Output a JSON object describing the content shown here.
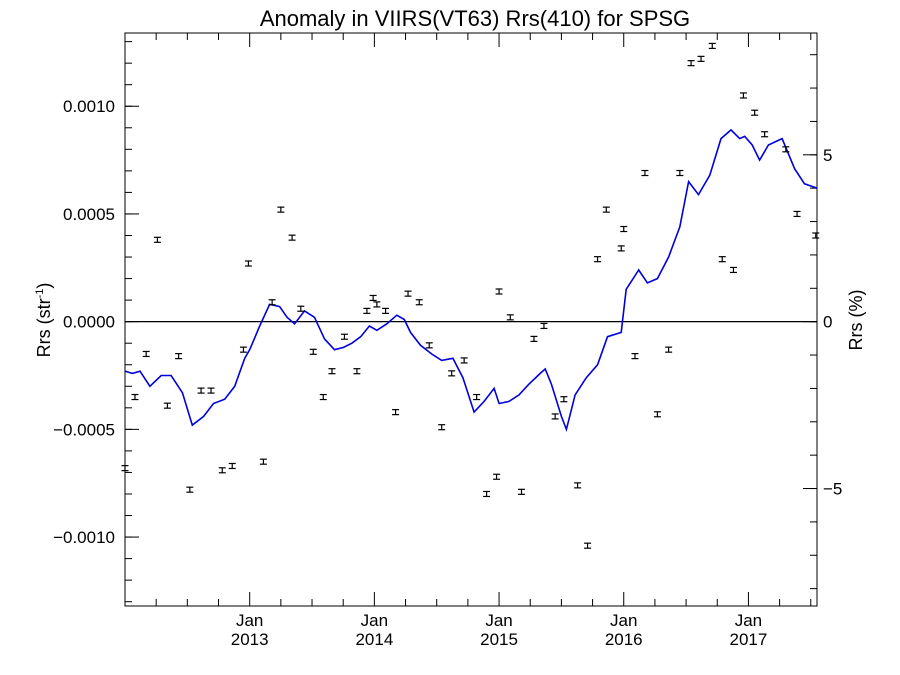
{
  "chart_data": {
    "type": "scatter",
    "title": "Anomaly in VIIRS(VT63) Rrs(410) for SPSG",
    "ylabel_left_main": "Rrs (str",
    "ylabel_left_sup": "-1",
    "ylabel_left_close": ")",
    "ylabel_right": "Rrs (%)",
    "xlim": [
      2012.0,
      2017.55
    ],
    "ylim_left": [
      -0.00132,
      0.00134
    ],
    "ylim_right": [
      -8.52,
      8.65
    ],
    "grid": false,
    "xticks": [
      {
        "x": 2013.0,
        "month": "Jan",
        "year": "2013"
      },
      {
        "x": 2014.0,
        "month": "Jan",
        "year": "2014"
      },
      {
        "x": 2015.0,
        "month": "Jan",
        "year": "2015"
      },
      {
        "x": 2016.0,
        "month": "Jan",
        "year": "2016"
      },
      {
        "x": 2017.0,
        "month": "Jan",
        "year": "2017"
      }
    ],
    "yticks_left": [
      {
        "v": 0.001,
        "label": "0.0010"
      },
      {
        "v": 0.0005,
        "label": "0.0005"
      },
      {
        "v": 0.0,
        "label": "0.0000"
      },
      {
        "v": -0.0005,
        "label": "−0.0005"
      },
      {
        "v": -0.001,
        "label": "−0.0010"
      }
    ],
    "yticks_right": [
      {
        "v": 5,
        "label": "5"
      },
      {
        "v": 0,
        "label": "0"
      },
      {
        "v": -5,
        "label": "−5"
      }
    ],
    "colors": {
      "line": "#0000dd",
      "points": "#000000",
      "axes": "#000000"
    },
    "series": [
      {
        "style": "line",
        "x": [
          2012.0,
          2012.06,
          2012.12,
          2012.2,
          2012.29,
          2012.37,
          2012.46,
          2012.54,
          2012.63,
          2012.71,
          2012.8,
          2012.88,
          2012.96,
          2013.0,
          2013.08,
          2013.16,
          2013.24,
          2013.3,
          2013.36,
          2013.44,
          2013.52,
          2013.6,
          2013.68,
          2013.75,
          2013.82,
          2013.89,
          2013.96,
          2014.02,
          2014.1,
          2014.18,
          2014.24,
          2014.29,
          2014.37,
          2014.46,
          2014.54,
          2014.63,
          2014.71,
          2014.8,
          2014.88,
          2014.96,
          2015.0,
          2015.08,
          2015.16,
          2015.24,
          2015.33,
          2015.37,
          2015.42,
          2015.5,
          2015.54,
          2015.61,
          2015.7,
          2015.79,
          2015.87,
          2015.98,
          2016.02,
          2016.12,
          2016.19,
          2016.27,
          2016.36,
          2016.45,
          2016.52,
          2016.6,
          2016.69,
          2016.78,
          2016.86,
          2016.93,
          2016.97,
          2017.03,
          2017.09,
          2017.16,
          2017.27,
          2017.37,
          2017.45,
          2017.55
        ],
        "y": [
          -0.00023,
          -0.00024,
          -0.00023,
          -0.0003,
          -0.00025,
          -0.00025,
          -0.00033,
          -0.00048,
          -0.00044,
          -0.00038,
          -0.00036,
          -0.0003,
          -0.00017,
          -0.00013,
          -2e-05,
          8e-05,
          7e-05,
          2e-05,
          -1e-05,
          5e-05,
          2e-05,
          -8e-05,
          -0.00013,
          -0.00012,
          -0.0001,
          -7e-05,
          -2e-05,
          -4e-05,
          -1e-05,
          3e-05,
          1e-05,
          -5e-05,
          -0.00011,
          -0.00015,
          -0.00018,
          -0.00017,
          -0.00026,
          -0.00042,
          -0.00037,
          -0.00031,
          -0.00038,
          -0.00037,
          -0.00034,
          -0.00029,
          -0.00024,
          -0.00022,
          -0.00029,
          -0.00044,
          -0.0005,
          -0.00034,
          -0.00026,
          -0.0002,
          -7e-05,
          -5e-05,
          0.00015,
          0.00024,
          0.00018,
          0.0002,
          0.0003,
          0.00044,
          0.00065,
          0.00059,
          0.00068,
          0.00085,
          0.00089,
          0.00085,
          0.00086,
          0.00082,
          0.00075,
          0.00082,
          0.00085,
          0.00071,
          0.00064,
          0.00062
        ]
      },
      {
        "style": "points",
        "x": [
          2012.0,
          2012.08,
          2012.17,
          2012.26,
          2012.34,
          2012.43,
          2012.52,
          2012.61,
          2012.69,
          2012.78,
          2012.86,
          2012.95,
          2012.99,
          2013.11,
          2013.18,
          2013.25,
          2013.34,
          2013.41,
          2013.51,
          2013.59,
          2013.66,
          2013.76,
          2013.86,
          2013.94,
          2013.99,
          2014.02,
          2014.09,
          2014.17,
          2014.27,
          2014.36,
          2014.44,
          2014.54,
          2014.62,
          2014.72,
          2014.82,
          2014.9,
          2014.98,
          2015.0,
          2015.09,
          2015.18,
          2015.28,
          2015.36,
          2015.45,
          2015.52,
          2015.63,
          2015.71,
          2015.79,
          2015.86,
          2015.98,
          2016.0,
          2016.09,
          2016.17,
          2016.27,
          2016.36,
          2016.45,
          2016.54,
          2016.62,
          2016.71,
          2016.79,
          2016.88,
          2016.96,
          2017.05,
          2017.13,
          2017.3,
          2017.39,
          2017.54
        ],
        "y": [
          -0.00068,
          -0.00035,
          -0.00015,
          0.00038,
          -0.00039,
          -0.00016,
          -0.00078,
          -0.00032,
          -0.00032,
          -0.00069,
          -0.00067,
          -0.00013,
          0.00027,
          -0.00065,
          9e-05,
          0.00052,
          0.00039,
          6e-05,
          -0.00014,
          -0.00035,
          -0.00023,
          -7e-05,
          -0.00023,
          5e-05,
          0.00011,
          8e-05,
          5e-05,
          -0.00042,
          0.00013,
          9e-05,
          -0.00011,
          -0.00049,
          -0.00024,
          -0.00018,
          -0.00035,
          -0.0008,
          -0.00072,
          0.00014,
          2e-05,
          -0.00079,
          -8e-05,
          -2e-05,
          -0.00044,
          -0.00036,
          -0.00076,
          -0.00104,
          0.00029,
          0.00052,
          0.00034,
          0.00043,
          -0.00016,
          0.00069,
          -0.00043,
          -0.00013,
          0.00069,
          0.0012,
          0.00122,
          0.00128,
          0.00029,
          0.00024,
          0.00105,
          0.00097,
          0.00087,
          0.0008,
          0.0005,
          0.0004
        ]
      }
    ]
  }
}
